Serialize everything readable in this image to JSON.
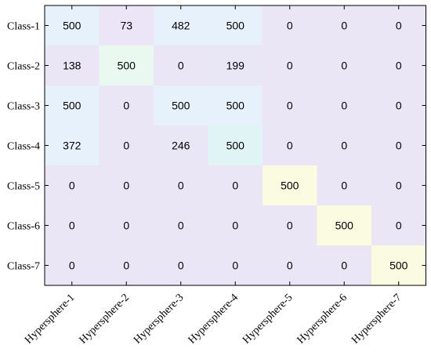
{
  "chart_data": {
    "type": "heatmap",
    "rows": [
      "Class-1",
      "Class-2",
      "Class-3",
      "Class-4",
      "Class-5",
      "Class-6",
      "Class-7"
    ],
    "columns": [
      "Hypersphere-1",
      "Hypersphere-2",
      "Hypersphere-3",
      "Hypersphere-4",
      "Hypersphere-5",
      "Hypersphere-6",
      "Hypersphere-7"
    ],
    "values": [
      [
        500,
        73,
        482,
        500,
        0,
        0,
        0
      ],
      [
        138,
        500,
        0,
        199,
        0,
        0,
        0
      ],
      [
        500,
        0,
        500,
        500,
        0,
        0,
        0
      ],
      [
        372,
        0,
        246,
        500,
        0,
        0,
        0
      ],
      [
        0,
        0,
        0,
        0,
        500,
        0,
        0
      ],
      [
        0,
        0,
        0,
        0,
        0,
        500,
        0
      ],
      [
        0,
        0,
        0,
        0,
        0,
        0,
        500
      ]
    ],
    "cell_colors": [
      [
        "#e7f1fc",
        "#ece5f7",
        "#e7f1fc",
        "#e7f1fc",
        "#ebe6f6",
        "#ebe6f6",
        "#ebe6f6"
      ],
      [
        "#eae6f6",
        "#eaf9f0",
        "#ebe6f6",
        "#e9e7f6",
        "#ebe6f6",
        "#ebe6f6",
        "#ebe6f6"
      ],
      [
        "#e7f1fc",
        "#ebe6f6",
        "#e7f1fc",
        "#e7f1fc",
        "#ebe6f6",
        "#ebe6f6",
        "#ebe6f6"
      ],
      [
        "#e7f1fc",
        "#ebe6f6",
        "#e9e7f6",
        "#e1f4f5",
        "#ebe6f6",
        "#ebe6f6",
        "#ebe6f6"
      ],
      [
        "#ebe6f6",
        "#ebe6f6",
        "#ebe6f6",
        "#ebe6f6",
        "#fbfbe2",
        "#ebe6f6",
        "#ebe6f6"
      ],
      [
        "#ebe6f6",
        "#ebe6f6",
        "#ebe6f6",
        "#ebe6f6",
        "#ebe6f6",
        "#fbfbe2",
        "#ebe6f6"
      ],
      [
        "#ebe6f6",
        "#ebe6f6",
        "#ebe6f6",
        "#ebe6f6",
        "#ebe6f6",
        "#ebe6f6",
        "#fbfbe2"
      ]
    ]
  }
}
